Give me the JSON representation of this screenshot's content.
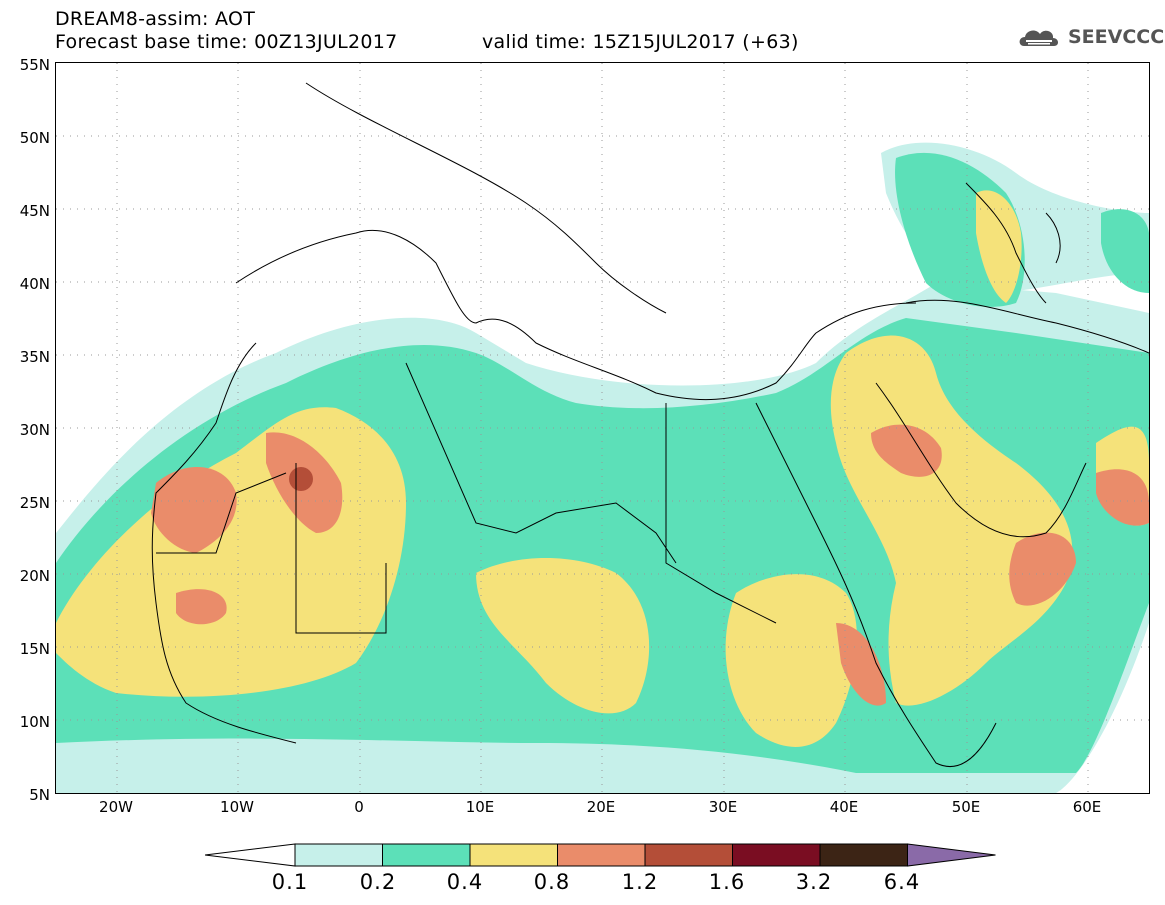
{
  "header": {
    "title": "DREAM8-assim: AOT",
    "base_time": "Forecast base time: 00Z13JUL2017",
    "valid_time": "valid time: 15Z15JUL2017 (+63)"
  },
  "logo": {
    "text": "SEEVCCC",
    "icon": "cloud-icon"
  },
  "map": {
    "lon_range": [
      -25,
      65
    ],
    "lat_range": [
      5,
      55
    ],
    "lat_labels": [
      "55N",
      "50N",
      "45N",
      "40N",
      "35N",
      "30N",
      "25N",
      "20N",
      "15N",
      "10N",
      "5N"
    ],
    "lon_labels": [
      "20W",
      "10W",
      "0",
      "10E",
      "20E",
      "30E",
      "40E",
      "50E",
      "60E"
    ],
    "field": "AOT"
  },
  "colorbar": {
    "labels": [
      "0.1",
      "0.2",
      "0.4",
      "0.8",
      "1.2",
      "1.6",
      "3.2",
      "6.4"
    ],
    "colors": [
      "#ffffff",
      "#c6f0ea",
      "#5ce0b8",
      "#f5e27a",
      "#ea8c6a",
      "#b44e38",
      "#7a0d22",
      "#3c2415",
      "#8a6aa8"
    ]
  }
}
